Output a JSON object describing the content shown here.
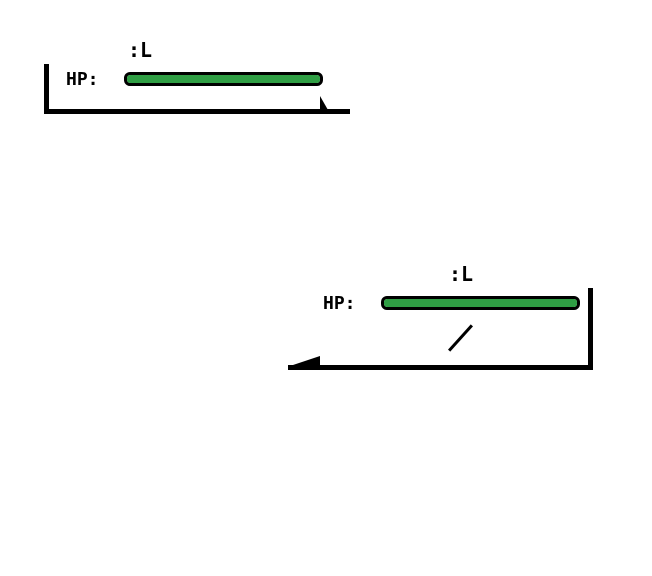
{
  "enemy_panel": {
    "level_label": ":L",
    "hp_label": "HP:",
    "hp_fraction": 1.0,
    "hp_color": "#2f9e44"
  },
  "player_panel": {
    "level_label": ":L",
    "hp_label": "HP:",
    "hp_fraction": 1.0,
    "hp_color": "#2f9e44",
    "hp_numbers": "/"
  }
}
